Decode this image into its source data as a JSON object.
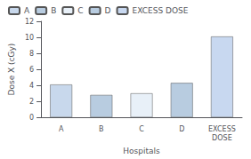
{
  "chart_data": {
    "type": "bar",
    "categories": [
      "A",
      "B",
      "C",
      "D",
      "EXCESS\nDOSE"
    ],
    "series": [
      {
        "name": "A",
        "color": "#c8d8ec",
        "values": [
          4.1,
          null,
          null,
          null,
          null
        ]
      },
      {
        "name": "B",
        "color": "#b8cce0",
        "values": [
          null,
          2.8,
          null,
          null,
          null
        ]
      },
      {
        "name": "C",
        "color": "#e8f0f8",
        "values": [
          null,
          null,
          3.0,
          null,
          null
        ]
      },
      {
        "name": "D",
        "color": "#b8cce0",
        "values": [
          null,
          null,
          null,
          4.3,
          null
        ]
      },
      {
        "name": "EXCESS DOSE",
        "color": "#c8d8f0",
        "values": [
          null,
          null,
          null,
          null,
          10.1
        ]
      }
    ],
    "xlabel": "Hospitals",
    "ylabel": "Dose X (cGy)",
    "ylim": [
      0,
      12
    ],
    "yticks": [
      0,
      2,
      4,
      6,
      8,
      10,
      12
    ],
    "grid": false,
    "legend": "upper left"
  }
}
